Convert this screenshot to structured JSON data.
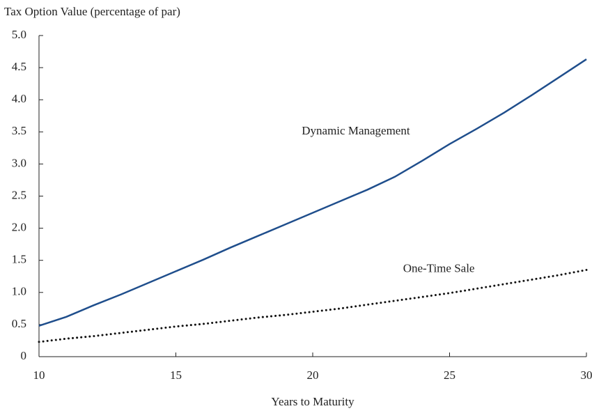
{
  "chart_data": {
    "type": "line",
    "title": "Tax Option Value (percentage of par)",
    "x_label": "Years to Maturity",
    "x": [
      10,
      11,
      12,
      13,
      14,
      15,
      16,
      17,
      18,
      19,
      20,
      21,
      22,
      23,
      24,
      25,
      26,
      27,
      28,
      29,
      30
    ],
    "series": [
      {
        "name": "Dynamic Management",
        "color": "#1f4e8c",
        "style": "solid",
        "values": [
          0.48,
          0.62,
          0.8,
          0.97,
          1.15,
          1.33,
          1.51,
          1.7,
          1.88,
          2.06,
          2.24,
          2.42,
          2.6,
          2.8,
          3.05,
          3.31,
          3.55,
          3.8,
          4.07,
          4.35,
          4.63
        ]
      },
      {
        "name": "One-Time Sale",
        "color": "#111111",
        "style": "dotted",
        "values": [
          0.23,
          0.28,
          0.32,
          0.37,
          0.42,
          0.47,
          0.51,
          0.56,
          0.61,
          0.65,
          0.7,
          0.75,
          0.81,
          0.87,
          0.93,
          0.99,
          1.06,
          1.13,
          1.2,
          1.27,
          1.35
        ]
      }
    ],
    "xlim": [
      10,
      30
    ],
    "xticks": [
      10,
      15,
      20,
      25,
      30
    ],
    "ylim": [
      0,
      5
    ],
    "yticks": [
      0,
      0.5,
      {
        "value": 1,
        "label": "1.0"
      },
      1.5,
      {
        "value": 2,
        "label": "2.0"
      },
      2.5,
      {
        "value": 3,
        "label": "3.0"
      },
      3.5,
      {
        "value": 4,
        "label": "4.0"
      },
      4.5,
      {
        "value": 5,
        "label": "5.0"
      }
    ],
    "grid": false
  }
}
